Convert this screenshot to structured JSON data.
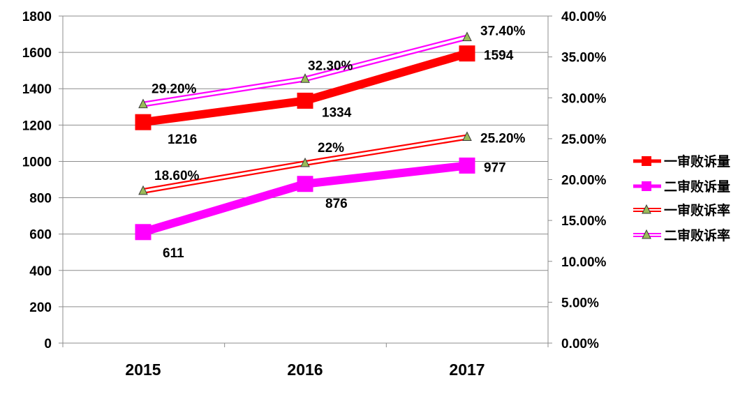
{
  "chart_data": {
    "type": "line",
    "categories": [
      "2015",
      "2016",
      "2017"
    ],
    "y_left": {
      "ylim": [
        0,
        1800
      ],
      "ticks": [
        "0",
        "200",
        "400",
        "600",
        "800",
        "1000",
        "1200",
        "1400",
        "1600",
        "1800"
      ]
    },
    "y_right": {
      "ylim": [
        0,
        40
      ],
      "ticks": [
        "0.00%",
        "5.00%",
        "10.00%",
        "15.00%",
        "20.00%",
        "25.00%",
        "30.00%",
        "35.00%",
        "40.00%"
      ]
    },
    "grid": "horizontal",
    "legend_position": "right",
    "series": [
      {
        "name": "一审败诉量",
        "axis": "left",
        "values": [
          1216,
          1334,
          1594
        ],
        "labels": [
          "1216",
          "1334",
          "1594"
        ],
        "color": "#ff0000",
        "marker": "square",
        "style": "thick"
      },
      {
        "name": "二审败诉量",
        "axis": "left",
        "values": [
          611,
          876,
          977
        ],
        "labels": [
          "611",
          "876",
          "977"
        ],
        "color": "#ff00ff",
        "marker": "square",
        "style": "thick"
      },
      {
        "name": "一审败诉率",
        "axis": "right",
        "values": [
          18.6,
          22,
          25.2
        ],
        "labels": [
          "18.60%",
          "22%",
          "25.20%"
        ],
        "color": "#ff0000",
        "marker": "triangle",
        "marker_color": "#9bbb59",
        "style": "double"
      },
      {
        "name": "二审败诉率",
        "axis": "right",
        "values": [
          29.2,
          32.3,
          37.4
        ],
        "labels": [
          "29.20%",
          "32.30%",
          "37.40%"
        ],
        "color": "#ff00ff",
        "marker": "triangle",
        "marker_color": "#9bbb59",
        "style": "double"
      }
    ]
  }
}
